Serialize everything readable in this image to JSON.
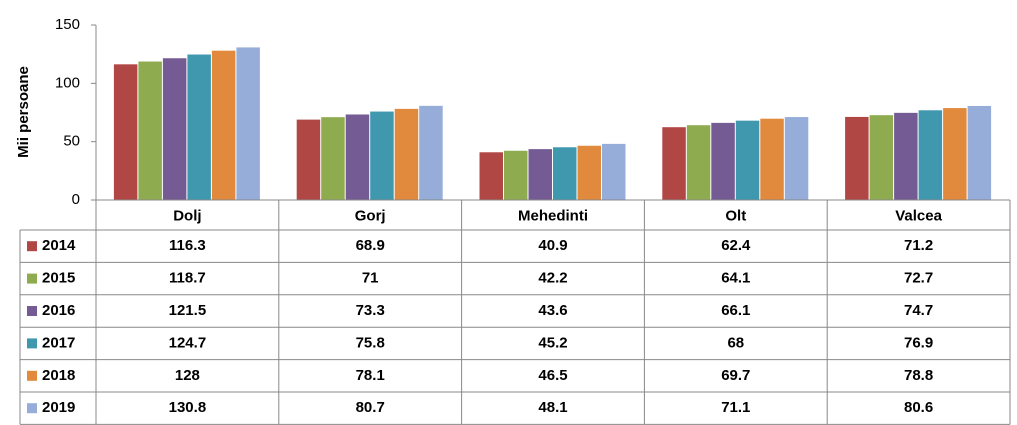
{
  "chart_data": {
    "type": "bar",
    "y_label": "Mii persoane",
    "categories": [
      "Dolj",
      "Gorj",
      "Mehedinti",
      "Olt",
      "Valcea"
    ],
    "series": [
      {
        "name": "2014",
        "color": "#b04745",
        "values": [
          116.3,
          68.9,
          40.9,
          62.4,
          71.2
        ]
      },
      {
        "name": "2015",
        "color": "#8fab4f",
        "values": [
          118.7,
          71,
          42.2,
          64.1,
          72.7
        ]
      },
      {
        "name": "2016",
        "color": "#745b93",
        "values": [
          121.5,
          73.3,
          43.6,
          66.1,
          74.7
        ]
      },
      {
        "name": "2017",
        "color": "#3f98ae",
        "values": [
          124.7,
          75.8,
          45.2,
          68,
          76.9
        ]
      },
      {
        "name": "2018",
        "color": "#e18a3d",
        "values": [
          128,
          78.1,
          46.5,
          69.7,
          78.8
        ]
      },
      {
        "name": "2019",
        "color": "#95add8",
        "values": [
          130.8,
          80.7,
          48.1,
          71.1,
          80.6
        ]
      }
    ],
    "ylim": [
      0,
      150
    ],
    "yticks": [
      0,
      50,
      100,
      150
    ],
    "grid": false
  }
}
